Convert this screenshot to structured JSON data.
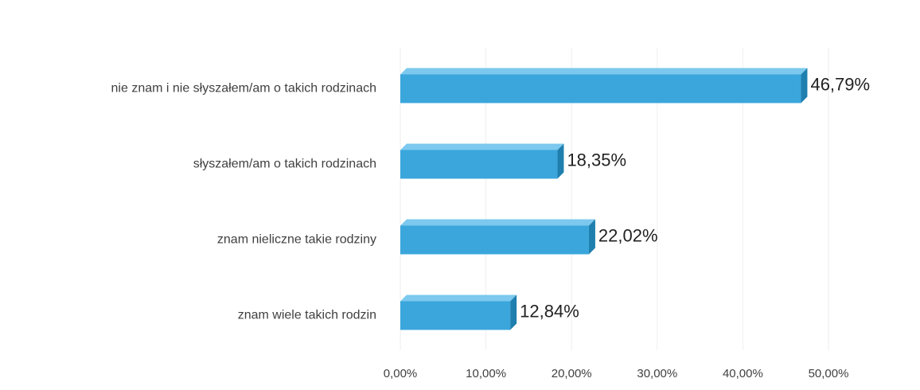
{
  "chart_data": {
    "type": "bar",
    "orientation": "horizontal",
    "categories": [
      "nie znam i nie słyszałem/am o takich rodzinach",
      "słyszałem/am o takich rodzinach",
      "znam nieliczne takie rodziny",
      "znam wiele takich rodzin"
    ],
    "values": [
      46.79,
      18.35,
      22.02,
      12.84
    ],
    "value_labels": [
      "46,79%",
      "18,35%",
      "22,02%",
      "12,84%"
    ],
    "color": "#3aa6dc",
    "xlim": [
      0,
      50
    ],
    "xticks": [
      {
        "value": 0,
        "label": "0,00%"
      },
      {
        "value": 10,
        "label": "10,00%"
      },
      {
        "value": 20,
        "label": "20,00%"
      },
      {
        "value": 30,
        "label": "30,00%"
      },
      {
        "value": 40,
        "label": "40,00%"
      },
      {
        "value": 50,
        "label": "50,00%"
      }
    ],
    "grid": true
  }
}
